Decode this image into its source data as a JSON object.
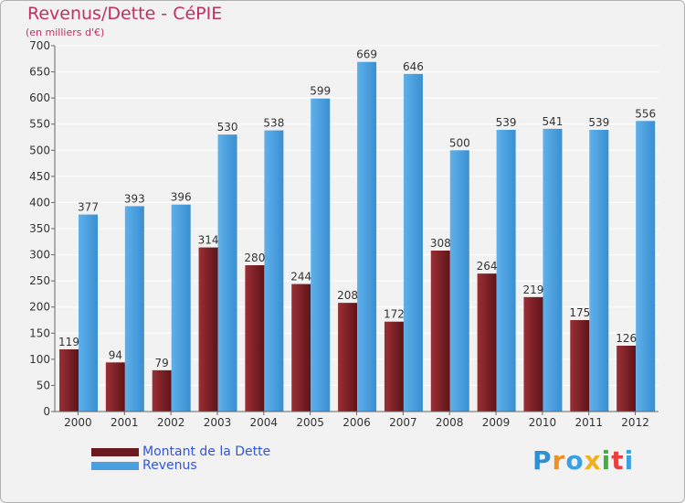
{
  "header": {
    "title": "Revenus/Dette - CéPIE",
    "subtitle": "(en milliers d'€)"
  },
  "legend": {
    "debt_label": "Montant de la Dette",
    "revenue_label": "Revenus"
  },
  "logo": {
    "text": "Proxiti"
  },
  "colors": {
    "debt": "#7a1f24",
    "revenue": "#4a9fdf",
    "title": "#c03060"
  },
  "chart_data": {
    "type": "bar",
    "title": "Revenus/Dette - CéPIE",
    "ylabel": "(en milliers d'€)",
    "xlabel": "",
    "categories": [
      "2000",
      "2001",
      "2002",
      "2003",
      "2004",
      "2005",
      "2006",
      "2007",
      "2008",
      "2009",
      "2010",
      "2011",
      "2012"
    ],
    "series": [
      {
        "name": "Montant de la Dette",
        "values": [
          119,
          94,
          79,
          314,
          280,
          244,
          208,
          172,
          308,
          264,
          219,
          175,
          126
        ]
      },
      {
        "name": "Revenus",
        "values": [
          377,
          393,
          396,
          530,
          538,
          599,
          669,
          646,
          500,
          539,
          541,
          539,
          556
        ]
      }
    ],
    "ylim": [
      0,
      700
    ],
    "yticks": [
      0,
      50,
      100,
      150,
      200,
      250,
      300,
      350,
      400,
      450,
      500,
      550,
      600,
      650,
      700
    ],
    "grid": true,
    "legend": "bottom-left"
  }
}
